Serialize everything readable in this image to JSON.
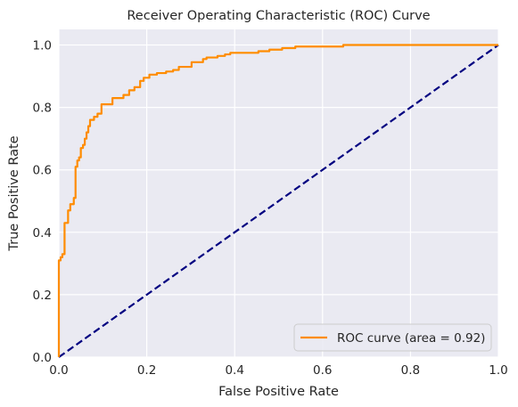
{
  "chart_data": {
    "type": "line",
    "title": "Receiver Operating Characteristic (ROC) Curve",
    "xlabel": "False Positive Rate",
    "ylabel": "True Positive Rate",
    "xlim": [
      0.0,
      1.0
    ],
    "ylim": [
      0.0,
      1.05
    ],
    "x_ticks": [
      "0.0",
      "0.2",
      "0.4",
      "0.6",
      "0.8",
      "1.0"
    ],
    "y_ticks": [
      "0.0",
      "0.2",
      "0.4",
      "0.6",
      "0.8",
      "1.0"
    ],
    "grid": true,
    "background_color": "#eaeaf2",
    "legend_placement": "lower-right",
    "series": [
      {
        "name": "ROC curve (area = 0.92)",
        "color": "#ff8c00",
        "line_style": "solid",
        "x": [
          0.0,
          0.0,
          0.0,
          0.004,
          0.004,
          0.008,
          0.008,
          0.013,
          0.013,
          0.021,
          0.021,
          0.026,
          0.026,
          0.034,
          0.034,
          0.038,
          0.038,
          0.042,
          0.042,
          0.046,
          0.046,
          0.05,
          0.05,
          0.055,
          0.055,
          0.059,
          0.059,
          0.063,
          0.063,
          0.067,
          0.067,
          0.071,
          0.071,
          0.08,
          0.08,
          0.088,
          0.088,
          0.097,
          0.097,
          0.122,
          0.122,
          0.147,
          0.147,
          0.16,
          0.16,
          0.172,
          0.172,
          0.185,
          0.185,
          0.193,
          0.193,
          0.206,
          0.206,
          0.223,
          0.223,
          0.244,
          0.244,
          0.26,
          0.26,
          0.273,
          0.273,
          0.302,
          0.302,
          0.328,
          0.328,
          0.336,
          0.336,
          0.361,
          0.361,
          0.378,
          0.378,
          0.39,
          0.39,
          0.454,
          0.454,
          0.479,
          0.479,
          0.508,
          0.508,
          0.538,
          0.538,
          0.647,
          0.647,
          0.664,
          0.664,
          0.676,
          0.676,
          1.0
        ],
        "y": [
          0.0,
          0.26,
          0.31,
          0.31,
          0.32,
          0.32,
          0.33,
          0.33,
          0.43,
          0.43,
          0.47,
          0.47,
          0.49,
          0.49,
          0.51,
          0.51,
          0.61,
          0.61,
          0.63,
          0.63,
          0.64,
          0.64,
          0.67,
          0.67,
          0.68,
          0.68,
          0.7,
          0.7,
          0.72,
          0.72,
          0.74,
          0.74,
          0.76,
          0.76,
          0.77,
          0.77,
          0.78,
          0.78,
          0.81,
          0.81,
          0.83,
          0.83,
          0.84,
          0.84,
          0.855,
          0.855,
          0.865,
          0.865,
          0.885,
          0.885,
          0.895,
          0.895,
          0.905,
          0.905,
          0.91,
          0.91,
          0.915,
          0.915,
          0.92,
          0.92,
          0.93,
          0.93,
          0.945,
          0.945,
          0.955,
          0.955,
          0.96,
          0.96,
          0.965,
          0.965,
          0.97,
          0.97,
          0.975,
          0.975,
          0.98,
          0.98,
          0.985,
          0.985,
          0.99,
          0.99,
          0.995,
          0.995,
          1.0,
          1.0,
          1.0,
          1.0,
          1.0,
          1.0
        ]
      },
      {
        "name": "",
        "color": "#000080",
        "line_style": "dashed",
        "x": [
          0.0,
          1.0
        ],
        "y": [
          0.0,
          1.0
        ]
      }
    ]
  }
}
